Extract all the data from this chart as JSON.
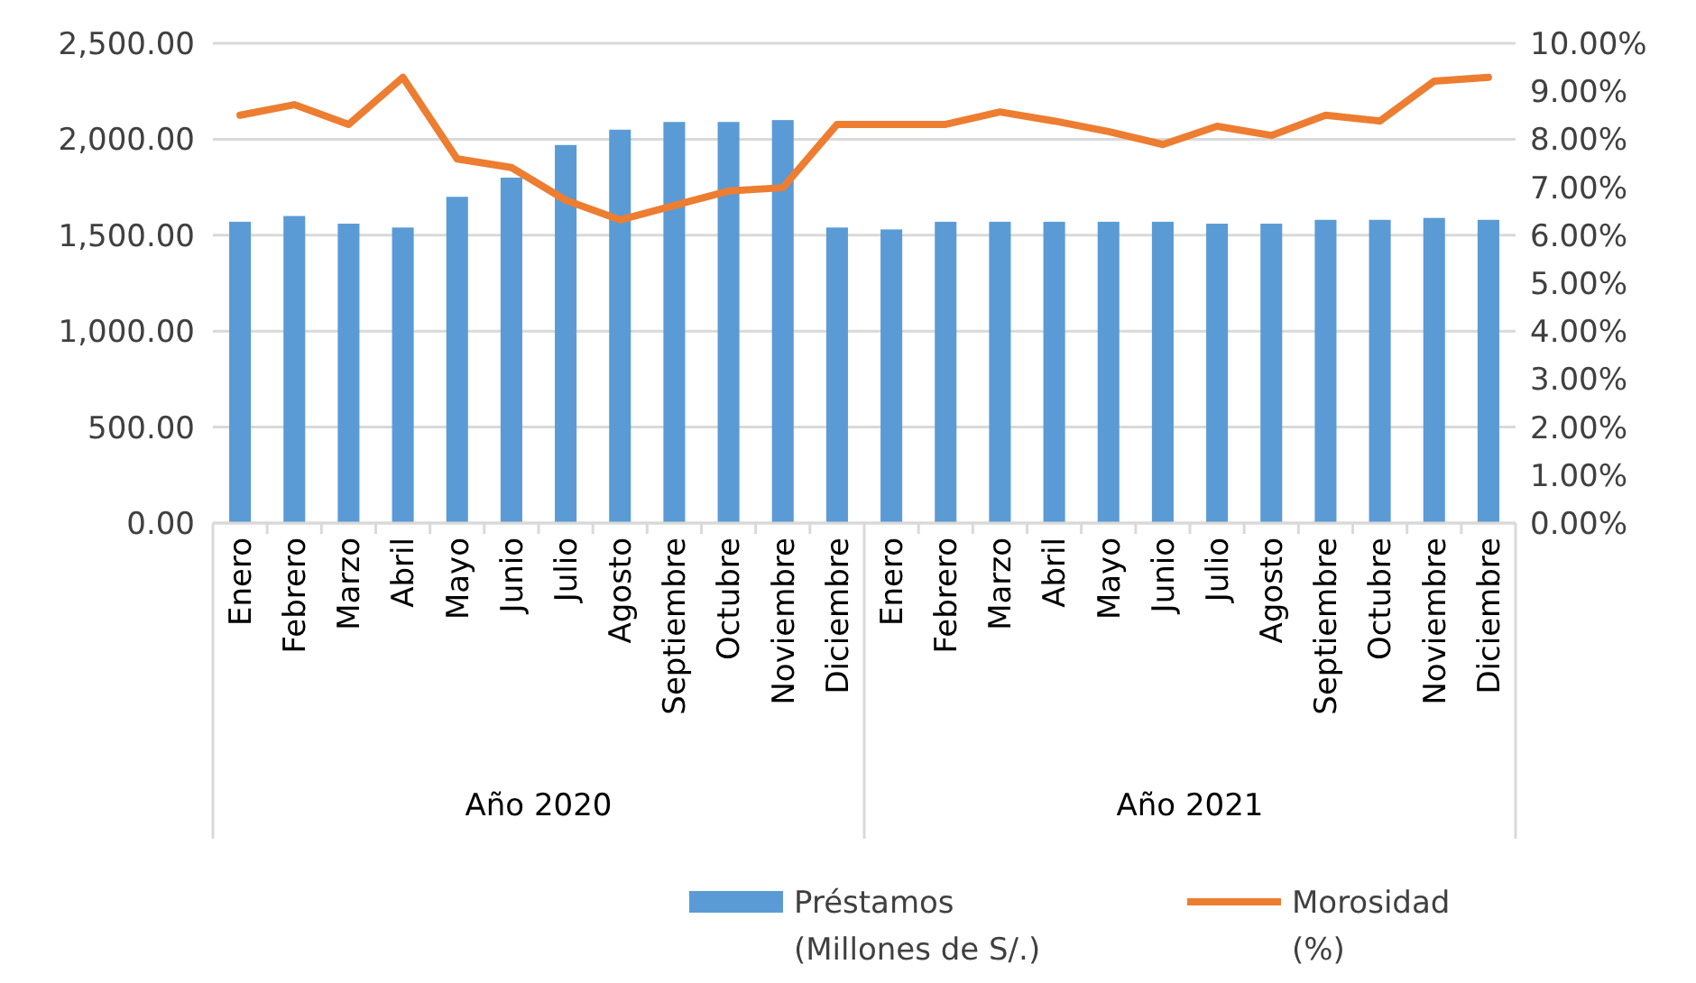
{
  "chart_data": {
    "type": "bar",
    "categories": [
      "Enero",
      "Febrero",
      "Marzo",
      "Abril",
      "Mayo",
      "Junio",
      "Julio",
      "Agosto",
      "Septiembre",
      "Octubre",
      "Noviembre",
      "Diciembre",
      "Enero",
      "Febrero",
      "Marzo",
      "Abril",
      "Mayo",
      "Junio",
      "Julio",
      "Agosto",
      "Septiembre",
      "Octubre",
      "Noviembre",
      "Diciembre"
    ],
    "annotations": [
      "Año 2020",
      "Año 2021"
    ],
    "series": [
      {
        "name": "Préstamos (Millones de S/.)",
        "color": "#5b9bd5",
        "values": [
          1570,
          1600,
          1560,
          1540,
          1700,
          1800,
          1970,
          2050,
          2090,
          2090,
          2100,
          1540,
          1530,
          1570,
          1570,
          1570,
          1570,
          1570,
          1560,
          1560,
          1580,
          1580,
          1590,
          1580
        ]
      },
      {
        "name": "Morosidad (%)",
        "type": "line",
        "axis": "y2",
        "color": "#ed7d31",
        "values": [
          8.5,
          8.72,
          8.31,
          9.29,
          7.59,
          7.41,
          6.73,
          6.32,
          6.62,
          6.92,
          6.99,
          8.31,
          8.31,
          8.31,
          8.57,
          8.38,
          8.16,
          7.89,
          8.27,
          8.08,
          8.5,
          8.38,
          9.21,
          9.29
        ]
      }
    ],
    "ylim": [
      0,
      2500
    ],
    "yticks": [
      {
        "value": 0,
        "label": "0.00"
      },
      {
        "value": 500,
        "label": "500.00"
      },
      {
        "value": 1000,
        "label": "1,000.00"
      },
      {
        "value": 1500,
        "label": "1,500.00"
      },
      {
        "value": 2000,
        "label": "2,000.00"
      },
      {
        "value": 2500,
        "label": "2,500.00"
      }
    ],
    "y2lim": [
      0,
      10
    ],
    "y2ticks": [
      {
        "value": 0,
        "label": "0.00%"
      },
      {
        "value": 1,
        "label": "1.00%"
      },
      {
        "value": 2,
        "label": "2.00%"
      },
      {
        "value": 3,
        "label": "3.00%"
      },
      {
        "value": 4,
        "label": "4.00%"
      },
      {
        "value": 5,
        "label": "5.00%"
      },
      {
        "value": 6,
        "label": "6.00%"
      },
      {
        "value": 7,
        "label": "7.00%"
      },
      {
        "value": 8,
        "label": "8.00%"
      },
      {
        "value": 9,
        "label": "9.00%"
      },
      {
        "value": 10,
        "label": "10.00%"
      }
    ],
    "grid": "y",
    "legend": "bottom",
    "marker": "none",
    "line_style": "solid"
  }
}
